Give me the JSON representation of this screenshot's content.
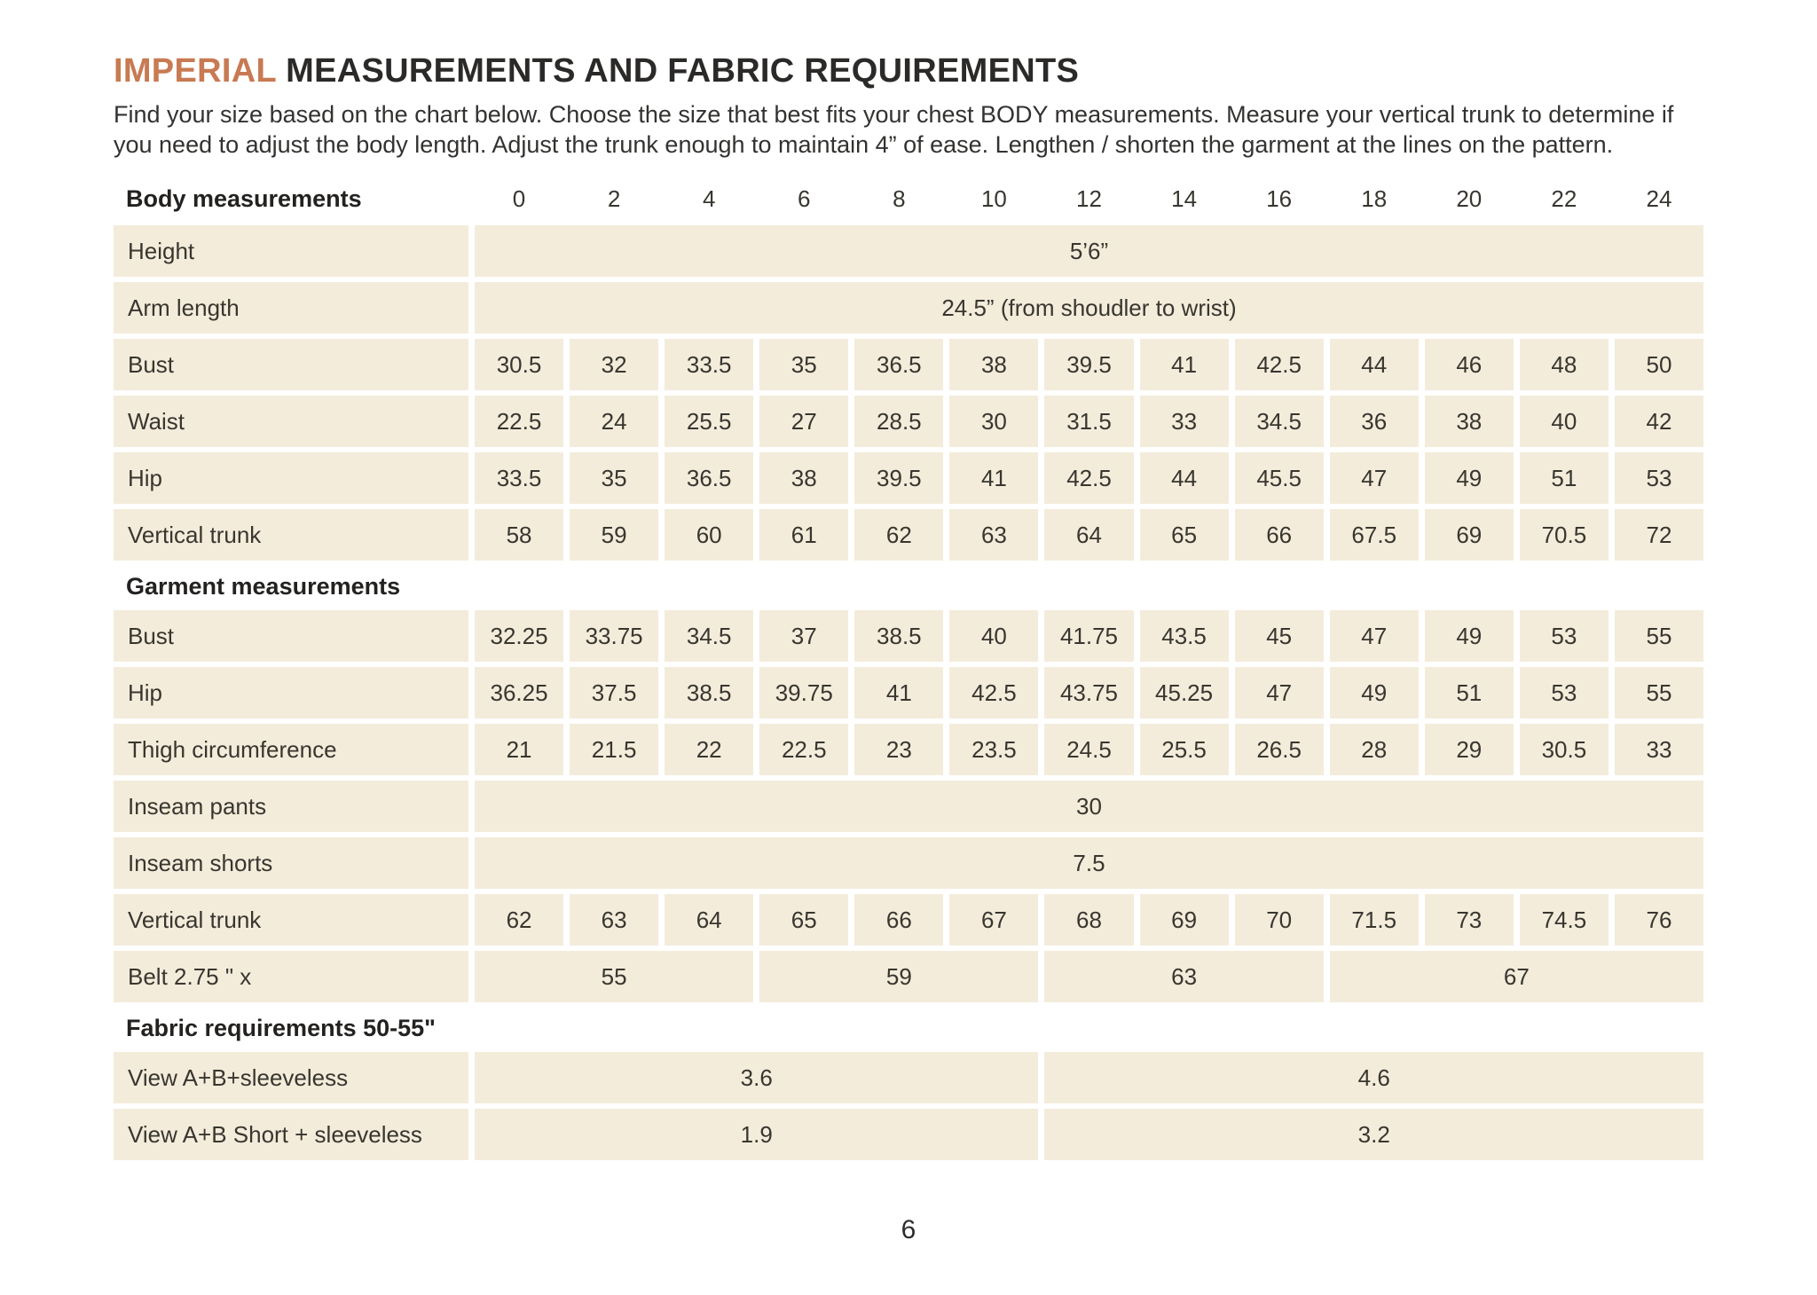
{
  "page": {
    "title_accent": "IMPERIAL",
    "title_rest": " MEASUREMENTS AND FABRIC REQUIREMENTS",
    "intro": "Find your size based on the chart below. Choose the size that best fits your chest BODY measurements. Measure your vertical trunk to determine if you need to adjust the body length. Adjust the trunk enough to maintain 4” of ease. Lengthen / shorten the garment at the lines on the pattern.",
    "page_number": "6"
  },
  "colors": {
    "accent": "#c87a52",
    "cell_background": "#f4ecdb",
    "text": "#2e2d2b",
    "page_background": "#ffffff"
  },
  "table": {
    "sizes": [
      "0",
      "2",
      "4",
      "6",
      "8",
      "10",
      "12",
      "14",
      "16",
      "18",
      "20",
      "22",
      "24"
    ],
    "rows": [
      {
        "type": "header",
        "label": "Body measurements"
      },
      {
        "type": "span",
        "label": "Height",
        "spans": [
          {
            "cols": 13,
            "value": "5’6”"
          }
        ]
      },
      {
        "type": "span",
        "label": "Arm length",
        "spans": [
          {
            "cols": 13,
            "value": "24.5” (from shoudler to wrist)"
          }
        ]
      },
      {
        "type": "values",
        "label": "Bust",
        "values": [
          "30.5",
          "32",
          "33.5",
          "35",
          "36.5",
          "38",
          "39.5",
          "41",
          "42.5",
          "44",
          "46",
          "48",
          "50"
        ]
      },
      {
        "type": "values",
        "label": "Waist",
        "values": [
          "22.5",
          "24",
          "25.5",
          "27",
          "28.5",
          "30",
          "31.5",
          "33",
          "34.5",
          "36",
          "38",
          "40",
          "42"
        ]
      },
      {
        "type": "values",
        "label": "Hip",
        "values": [
          "33.5",
          "35",
          "36.5",
          "38",
          "39.5",
          "41",
          "42.5",
          "44",
          "45.5",
          "47",
          "49",
          "51",
          "53"
        ]
      },
      {
        "type": "values",
        "label": "Vertical trunk",
        "values": [
          "58",
          "59",
          "60",
          "61",
          "62",
          "63",
          "64",
          "65",
          "66",
          "67.5",
          "69",
          "70.5",
          "72"
        ]
      },
      {
        "type": "section",
        "label": "Garment measurements"
      },
      {
        "type": "values",
        "label": "Bust",
        "values": [
          "32.25",
          "33.75",
          "34.5",
          "37",
          "38.5",
          "40",
          "41.75",
          "43.5",
          "45",
          "47",
          "49",
          "53",
          "55"
        ]
      },
      {
        "type": "values",
        "label": "Hip",
        "values": [
          "36.25",
          "37.5",
          "38.5",
          "39.75",
          "41",
          "42.5",
          "43.75",
          "45.25",
          "47",
          "49",
          "51",
          "53",
          "55"
        ]
      },
      {
        "type": "values",
        "label": "Thigh circumference",
        "values": [
          "21",
          "21.5",
          "22",
          "22.5",
          "23",
          "23.5",
          "24.5",
          "25.5",
          "26.5",
          "28",
          "29",
          "30.5",
          "33"
        ]
      },
      {
        "type": "span",
        "label": "Inseam pants",
        "spans": [
          {
            "cols": 13,
            "value": "30"
          }
        ]
      },
      {
        "type": "span",
        "label": "Inseam shorts",
        "spans": [
          {
            "cols": 13,
            "value": "7.5"
          }
        ]
      },
      {
        "type": "values",
        "label": "Vertical trunk",
        "values": [
          "62",
          "63",
          "64",
          "65",
          "66",
          "67",
          "68",
          "69",
          "70",
          "71.5",
          "73",
          "74.5",
          "76"
        ]
      },
      {
        "type": "span",
        "label": "Belt 2.75 \" x",
        "spans": [
          {
            "cols": 3,
            "value": "55"
          },
          {
            "cols": 3,
            "value": "59"
          },
          {
            "cols": 3,
            "value": "63"
          },
          {
            "cols": 4,
            "value": "67"
          }
        ]
      },
      {
        "type": "section",
        "label": "Fabric requirements 50-55\""
      },
      {
        "type": "span",
        "label": "View A+B+sleeveless",
        "spans": [
          {
            "cols": 6,
            "value": "3.6"
          },
          {
            "cols": 7,
            "value": "4.6"
          }
        ]
      },
      {
        "type": "span",
        "label": "View A+B Short + sleeveless",
        "spans": [
          {
            "cols": 6,
            "value": "1.9"
          },
          {
            "cols": 7,
            "value": "3.2"
          }
        ]
      }
    ]
  }
}
